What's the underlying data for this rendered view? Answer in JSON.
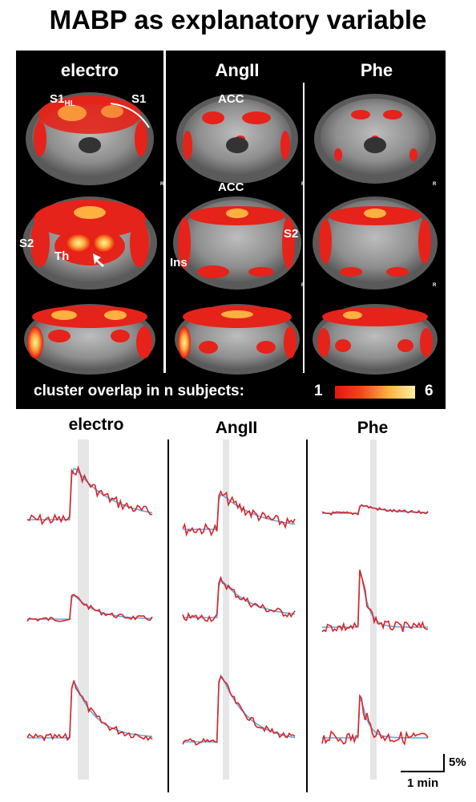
{
  "title": "MABP as explanatory variable",
  "panel": {
    "columns": [
      "electro",
      "AngII",
      "Phe"
    ],
    "annotations": {
      "s1hl_main": "S1",
      "s1hl_sub": "HL",
      "s1": "S1",
      "acc_top": "ACC",
      "acc_mid": "ACC",
      "s2_left": "S2",
      "th": "Th",
      "ins": "Ins",
      "s2_right": "S2",
      "r_marker": "R"
    },
    "legend": {
      "label": "cluster overlap in n subjects:",
      "min": "1",
      "max": "6",
      "colors": [
        "#e5150d",
        "#f04a18",
        "#ffb040",
        "#fff0a0"
      ]
    }
  },
  "timeseries": {
    "columns": [
      "electro",
      "AngII",
      "Phe"
    ],
    "scale": {
      "y_label": "5%",
      "x_label": "1 min"
    },
    "series_colors": {
      "measured": "#d9252b",
      "model": "#5fa8d8"
    },
    "stimulus_band_color": "#e6e6e6"
  }
}
